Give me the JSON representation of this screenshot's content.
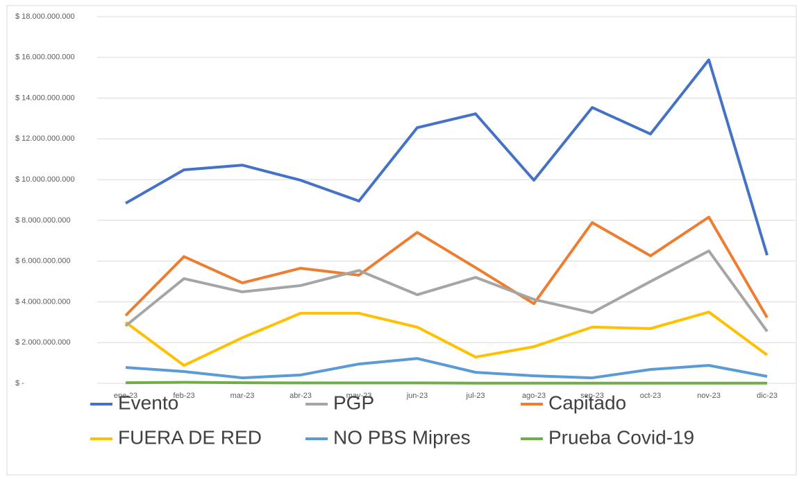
{
  "chart_data": {
    "type": "line",
    "categories": [
      "ene-23",
      "feb-23",
      "mar-23",
      "abr-23",
      "may-23",
      "jun-23",
      "jul-23",
      "ago-23",
      "sep-23",
      "oct-23",
      "nov-23",
      "dic-23"
    ],
    "series": [
      {
        "name": "Evento",
        "color": "#4472c4",
        "values": [
          8840000000,
          10480000000,
          10710000000,
          9970000000,
          8950000000,
          12550000000,
          13230000000,
          9970000000,
          13540000000,
          12240000000,
          15880000000,
          6290000000
        ]
      },
      {
        "name": "PGP",
        "color": "#a5a5a5",
        "values": [
          2820000000,
          5140000000,
          4490000000,
          4800000000,
          5540000000,
          4350000000,
          5200000000,
          4120000000,
          3470000000,
          5000000000,
          6500000000,
          2550000000
        ]
      },
      {
        "name": "Capitado",
        "color": "#ed7d31",
        "values": [
          3330000000,
          6220000000,
          4930000000,
          5650000000,
          5310000000,
          7410000000,
          5680000000,
          3910000000,
          7890000000,
          6260000000,
          8160000000,
          3230000000
        ]
      },
      {
        "name": "FUERA DE RED",
        "color": "#ffc000",
        "values": [
          3000000000,
          880000000,
          2240000000,
          3440000000,
          3440000000,
          2760000000,
          1290000000,
          1800000000,
          2760000000,
          2690000000,
          3500000000,
          1390000000
        ]
      },
      {
        "name": "NO PBS Mipres",
        "color": "#5b9bd5",
        "values": [
          780000000,
          580000000,
          270000000,
          410000000,
          950000000,
          1220000000,
          540000000,
          370000000,
          270000000,
          680000000,
          880000000,
          340000000
        ]
      },
      {
        "name": "Prueba Covid-19",
        "color": "#70ad47",
        "values": [
          30000000,
          50000000,
          30000000,
          20000000,
          20000000,
          20000000,
          10000000,
          10000000,
          10000000,
          10000000,
          10000000,
          10000000
        ]
      }
    ],
    "ylim": [
      0,
      18000000000
    ],
    "yticks": [
      {
        "value": 0,
        "label": "$ -"
      },
      {
        "value": 2000000000,
        "label": "$ 2.000.000.000"
      },
      {
        "value": 4000000000,
        "label": "$ 4.000.000.000"
      },
      {
        "value": 6000000000,
        "label": "$ 6.000.000.000"
      },
      {
        "value": 8000000000,
        "label": "$ 8.000.000.000"
      },
      {
        "value": 10000000000,
        "label": "$ 10.000.000.000"
      },
      {
        "value": 12000000000,
        "label": "$ 12.000.000.000"
      },
      {
        "value": 14000000000,
        "label": "$ 14.000.000.000"
      },
      {
        "value": 16000000000,
        "label": "$ 16.000.000.000"
      },
      {
        "value": 18000000000,
        "label": "$ 18.000.000.000"
      }
    ],
    "grid": true
  }
}
